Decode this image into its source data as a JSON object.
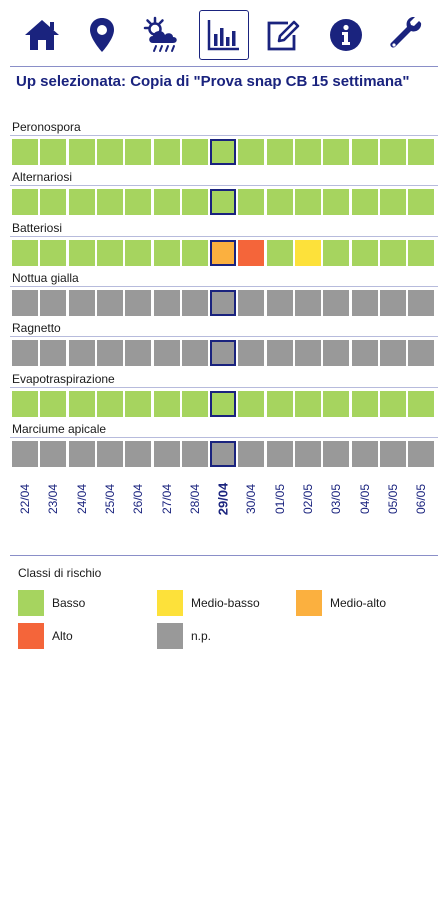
{
  "toolbar": {
    "items": [
      {
        "id": "home",
        "icon": "home-icon",
        "active": false
      },
      {
        "id": "location",
        "icon": "map-pin-icon",
        "active": false
      },
      {
        "id": "weather",
        "icon": "weather-cloud-sun-rain-icon",
        "active": false
      },
      {
        "id": "risk-chart",
        "icon": "bar-chart-icon",
        "active": true
      },
      {
        "id": "edit",
        "icon": "edit-icon",
        "active": false
      },
      {
        "id": "info",
        "icon": "info-icon",
        "active": false
      },
      {
        "id": "settings",
        "icon": "wrench-icon",
        "active": false
      }
    ]
  },
  "up_title": "Up selezionata: Copia di \"Prova snap CB 15 settimana\"",
  "dates": [
    "22/04",
    "23/04",
    "24/04",
    "25/04",
    "26/04",
    "27/04",
    "28/04",
    "29/04",
    "30/04",
    "01/05",
    "02/05",
    "03/05",
    "04/05",
    "05/05",
    "06/05"
  ],
  "selected_index": 7,
  "colors": {
    "basso": "#a6d45f",
    "medio_basso": "#fde13a",
    "medio_alto": "#fbb03f",
    "alto": "#f4653a",
    "np": "#999999",
    "accent": "#1a237e"
  },
  "rows": [
    {
      "name": "Peronospora",
      "cells": [
        "basso",
        "basso",
        "basso",
        "basso",
        "basso",
        "basso",
        "basso",
        "basso",
        "basso",
        "basso",
        "basso",
        "basso",
        "basso",
        "basso",
        "basso"
      ]
    },
    {
      "name": "Alternariosi",
      "cells": [
        "basso",
        "basso",
        "basso",
        "basso",
        "basso",
        "basso",
        "basso",
        "basso",
        "basso",
        "basso",
        "basso",
        "basso",
        "basso",
        "basso",
        "basso"
      ]
    },
    {
      "name": "Batteriosi",
      "cells": [
        "basso",
        "basso",
        "basso",
        "basso",
        "basso",
        "basso",
        "basso",
        "medio_alto",
        "alto",
        "basso",
        "medio_basso",
        "basso",
        "basso",
        "basso",
        "basso"
      ]
    },
    {
      "name": "Nottua gialla",
      "cells": [
        "np",
        "np",
        "np",
        "np",
        "np",
        "np",
        "np",
        "np",
        "np",
        "np",
        "np",
        "np",
        "np",
        "np",
        "np"
      ]
    },
    {
      "name": "Ragnetto",
      "cells": [
        "np",
        "np",
        "np",
        "np",
        "np",
        "np",
        "np",
        "np",
        "np",
        "np",
        "np",
        "np",
        "np",
        "np",
        "np"
      ]
    },
    {
      "name": "Evapotraspirazione",
      "cells": [
        "basso",
        "basso",
        "basso",
        "basso",
        "basso",
        "basso",
        "basso",
        "basso",
        "basso",
        "basso",
        "basso",
        "basso",
        "basso",
        "basso",
        "basso"
      ]
    },
    {
      "name": "Marciume apicale",
      "cells": [
        "np",
        "np",
        "np",
        "np",
        "np",
        "np",
        "np",
        "np",
        "np",
        "np",
        "np",
        "np",
        "np",
        "np",
        "np"
      ]
    }
  ],
  "legend": {
    "title": "Classi di rischio",
    "items": [
      {
        "key": "basso",
        "label": "Basso"
      },
      {
        "key": "medio_basso",
        "label": "Medio-basso"
      },
      {
        "key": "medio_alto",
        "label": "Medio-alto"
      },
      {
        "key": "alto",
        "label": "Alto"
      },
      {
        "key": "np",
        "label": "n.p."
      }
    ]
  }
}
